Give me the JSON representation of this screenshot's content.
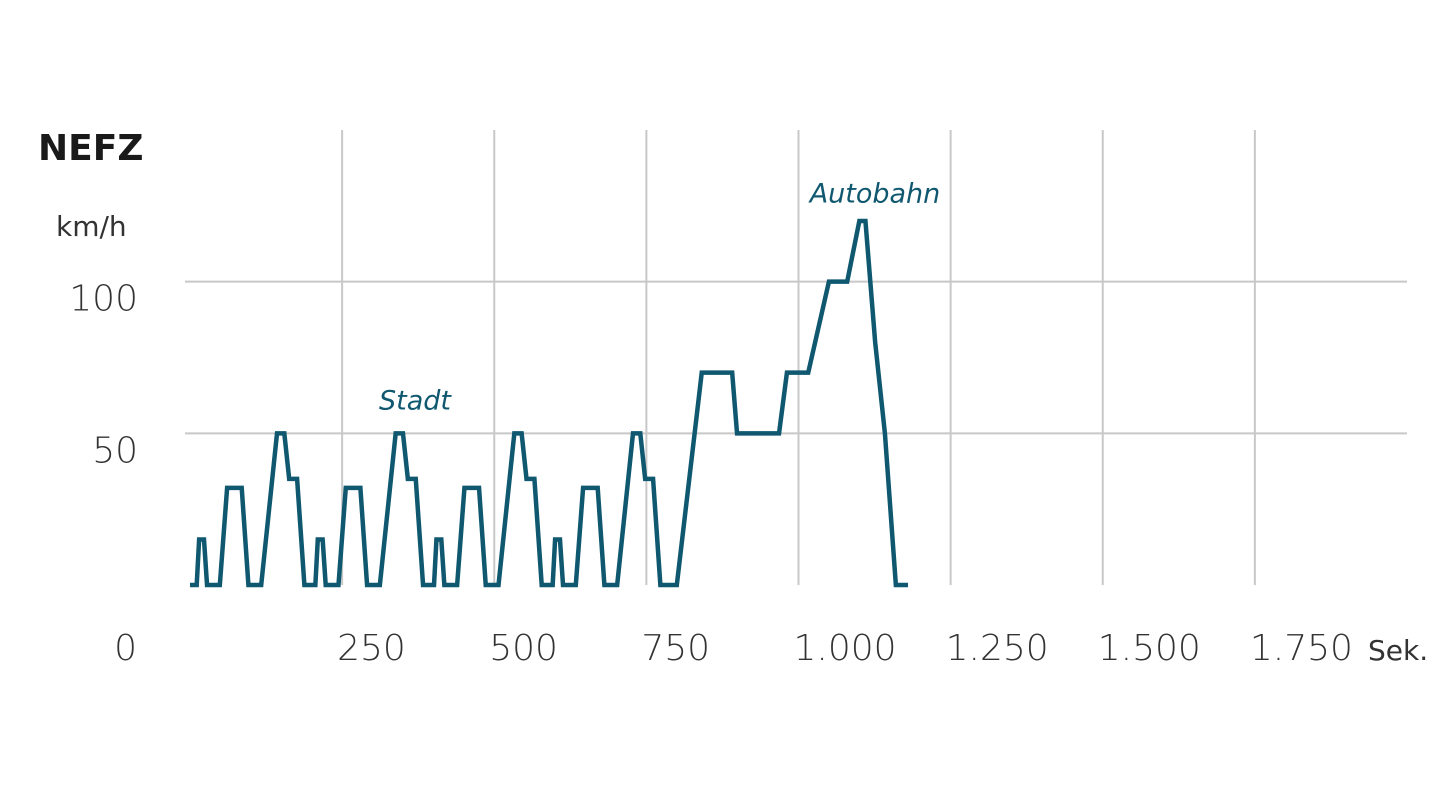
{
  "chart_data": {
    "type": "line",
    "title": "NEFZ",
    "y_label": "km/h",
    "x_label": "Sek.",
    "annotations": [
      "Stadt",
      "Autobahn"
    ],
    "x": [
      0,
      11,
      15,
      23,
      28,
      49,
      61,
      85,
      96,
      117,
      143,
      155,
      163,
      176,
      188,
      195,
      206,
      210,
      218,
      223,
      244,
      256,
      280,
      291,
      312,
      338,
      350,
      358,
      371,
      383,
      390,
      401,
      405,
      413,
      418,
      439,
      451,
      475,
      486,
      507,
      533,
      545,
      553,
      566,
      578,
      585,
      596,
      600,
      608,
      613,
      634,
      646,
      670,
      681,
      702,
      728,
      740,
      748,
      761,
      773,
      780,
      800,
      841,
      891,
      899,
      968,
      981,
      1016,
      1050,
      1080,
      1100,
      1110,
      1126,
      1142,
      1160,
      1180
    ],
    "series": [
      {
        "color": "#0f5870",
        "values": [
          0,
          0,
          15,
          15,
          0,
          0,
          32,
          32,
          0,
          0,
          50,
          50,
          35,
          35,
          0,
          0,
          0,
          15,
          15,
          0,
          0,
          32,
          32,
          0,
          0,
          50,
          50,
          35,
          35,
          0,
          0,
          0,
          15,
          15,
          0,
          0,
          32,
          32,
          0,
          0,
          50,
          50,
          35,
          35,
          0,
          0,
          0,
          15,
          15,
          0,
          0,
          32,
          32,
          0,
          0,
          50,
          50,
          35,
          35,
          0,
          0,
          0,
          70,
          70,
          50,
          50,
          70,
          70,
          100,
          100,
          120,
          120,
          80,
          50,
          0,
          0
        ]
      }
    ],
    "xlim": [
      0,
      2000
    ],
    "ylim": [
      0,
      150
    ],
    "xticks": [
      0,
      250,
      500,
      750,
      {
        "value": 1000,
        "label": "1.000"
      },
      {
        "value": 1250,
        "label": "1.250"
      },
      {
        "value": 1500,
        "label": "1.500"
      },
      {
        "value": 1750,
        "label": "1.750"
      }
    ],
    "yticks": [
      50,
      100
    ],
    "grid": true
  }
}
